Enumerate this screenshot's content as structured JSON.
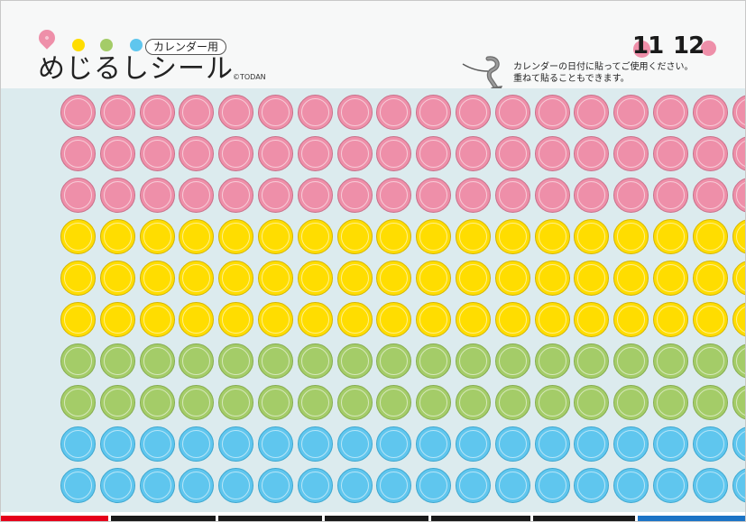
{
  "header": {
    "tag_label": "カレンダー用",
    "title": "めじるしシール",
    "copyright": "©TODAN",
    "calendar_numbers": [
      "11",
      "12"
    ],
    "instructions": [
      "カレンダーの日付に貼ってご使用ください。",
      "重ねて貼ることもできます。"
    ]
  },
  "icons": {
    "pin": "pin-drop-icon",
    "arrow": "curved-arrow-icon"
  },
  "colors": {
    "pink": "#ee8fa9",
    "yellow": "#ffdd00",
    "green": "#a4cc68",
    "blue": "#5fc6ee",
    "background": "#dcebee",
    "bottom_red": "#e5001a",
    "bottom_black": "#1a1a1a",
    "bottom_blue": "#1b74c6"
  },
  "sticker_grid": {
    "columns": 18,
    "rows": [
      "pink",
      "pink",
      "pink",
      "yellow",
      "yellow",
      "yellow",
      "green",
      "green",
      "blue",
      "blue"
    ]
  }
}
